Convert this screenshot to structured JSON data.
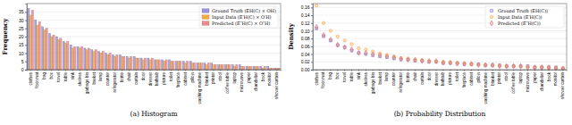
{
  "chart_data": [
    {
      "type": "bar",
      "title": "(a) Histogram",
      "y_label": "Frequency",
      "categories": [
        "clothes",
        "floor mat",
        "bag",
        "box",
        "towel",
        "table",
        "sink",
        "shelves",
        "garbage bin",
        "basket",
        "lamp",
        "counter",
        "refrigerator",
        "bottle",
        "chair",
        "curtain",
        "door",
        "dresser",
        "bathtub",
        "picture",
        "toilet",
        "fireplace",
        "cabinet",
        "pillow",
        "washing machine",
        "blanket",
        "printer",
        "stool",
        "coffee table",
        "laptop",
        "microwave",
        "paper",
        "chandelier",
        "book",
        "monitor",
        "shower curtain"
      ],
      "series": [
        {
          "name": "Ground Truth (EH(C) × OH)",
          "color": "#9b93d8",
          "values": [
            37,
            30,
            26,
            22,
            20,
            17,
            15,
            14,
            13,
            12,
            11,
            10,
            9,
            9,
            8,
            8,
            7,
            7,
            6,
            6,
            6,
            5,
            5,
            5,
            4,
            4,
            4,
            3,
            3,
            3,
            3,
            2,
            2,
            2,
            2,
            1
          ]
        },
        {
          "name": "Input Data (E′H(C) × O′H)",
          "color": "#f5a947",
          "values": [
            33,
            27,
            24,
            20,
            18,
            16,
            13,
            13,
            12,
            11,
            10,
            9,
            8,
            8,
            7,
            7,
            6,
            6,
            6,
            5,
            5,
            5,
            4,
            4,
            4,
            3,
            3,
            3,
            3,
            2,
            2,
            2,
            2,
            1,
            1,
            1
          ]
        },
        {
          "name": "Predicted (E″H(C) × O″H)",
          "color": "#ea8c8c",
          "values": [
            36,
            29,
            25,
            21,
            19,
            17,
            14,
            14,
            13,
            12,
            11,
            10,
            9,
            8,
            8,
            7,
            7,
            7,
            6,
            6,
            5,
            5,
            5,
            4,
            4,
            4,
            3,
            3,
            3,
            3,
            2,
            2,
            2,
            2,
            1,
            1
          ]
        }
      ],
      "ylim": [
        0,
        40
      ],
      "yticks": [
        0,
        5,
        10,
        15,
        20,
        25,
        30,
        35
      ],
      "legend": "upper right"
    },
    {
      "type": "scatter",
      "title": "(b) Probability Distribution",
      "y_label": "Density",
      "categories": [
        "clothes",
        "floor mat",
        "bag",
        "box",
        "towel",
        "table",
        "sink",
        "shelves",
        "garbage bin",
        "basket",
        "lamp",
        "counter",
        "refrigerator",
        "bottle",
        "chair",
        "curtain",
        "door",
        "dresser",
        "bathtub",
        "picture",
        "toilet",
        "fireplace",
        "cabinet",
        "pillow",
        "washing machine",
        "blanket",
        "printer",
        "stool",
        "coffee table",
        "laptop",
        "microwave",
        "paper",
        "chandelier",
        "book",
        "monitor",
        "shower curtain"
      ],
      "series": [
        {
          "name": "Ground Truth (EH(C))",
          "color": "#8c84d0",
          "marker": "square",
          "values": [
            0.106,
            0.086,
            0.075,
            0.063,
            0.057,
            0.049,
            0.043,
            0.04,
            0.037,
            0.034,
            0.032,
            0.029,
            0.026,
            0.026,
            0.023,
            0.023,
            0.02,
            0.02,
            0.017,
            0.017,
            0.017,
            0.014,
            0.014,
            0.014,
            0.011,
            0.011,
            0.011,
            0.009,
            0.009,
            0.009,
            0.009,
            0.006,
            0.006,
            0.006,
            0.006,
            0.003
          ]
        },
        {
          "name": "Input Data (E′H(C))",
          "color": "#f5a947",
          "marker": "circle",
          "values": [
            0.165,
            0.12,
            0.1,
            0.085,
            0.075,
            0.066,
            0.055,
            0.052,
            0.047,
            0.042,
            0.038,
            0.034,
            0.03,
            0.029,
            0.026,
            0.025,
            0.022,
            0.021,
            0.02,
            0.018,
            0.017,
            0.016,
            0.014,
            0.013,
            0.012,
            0.011,
            0.01,
            0.009,
            0.009,
            0.008,
            0.007,
            0.006,
            0.006,
            0.005,
            0.004,
            0.003
          ]
        },
        {
          "name": "Predicted (E″H(C))",
          "color": "#e07070",
          "marker": "diamond",
          "values": [
            0.11,
            0.089,
            0.077,
            0.064,
            0.058,
            0.052,
            0.043,
            0.043,
            0.04,
            0.037,
            0.034,
            0.031,
            0.028,
            0.025,
            0.025,
            0.022,
            0.022,
            0.022,
            0.018,
            0.018,
            0.015,
            0.015,
            0.015,
            0.012,
            0.012,
            0.012,
            0.009,
            0.009,
            0.009,
            0.009,
            0.006,
            0.006,
            0.006,
            0.006,
            0.003,
            0.003
          ]
        }
      ],
      "ylim": [
        0,
        0.17
      ],
      "yticks": [
        {
          "value": 0,
          "label": "0.00"
        },
        {
          "value": 0.02,
          "label": "0.02"
        },
        {
          "value": 0.04,
          "label": "0.04"
        },
        {
          "value": 0.06,
          "label": "0.06"
        },
        {
          "value": 0.08,
          "label": "0.08"
        },
        {
          "value": 0.1,
          "label": "0.10"
        },
        {
          "value": 0.12,
          "label": "0.12"
        },
        {
          "value": 0.14,
          "label": "0.14"
        },
        {
          "value": 0.16,
          "label": "0.16"
        }
      ],
      "legend": "upper right"
    }
  ]
}
